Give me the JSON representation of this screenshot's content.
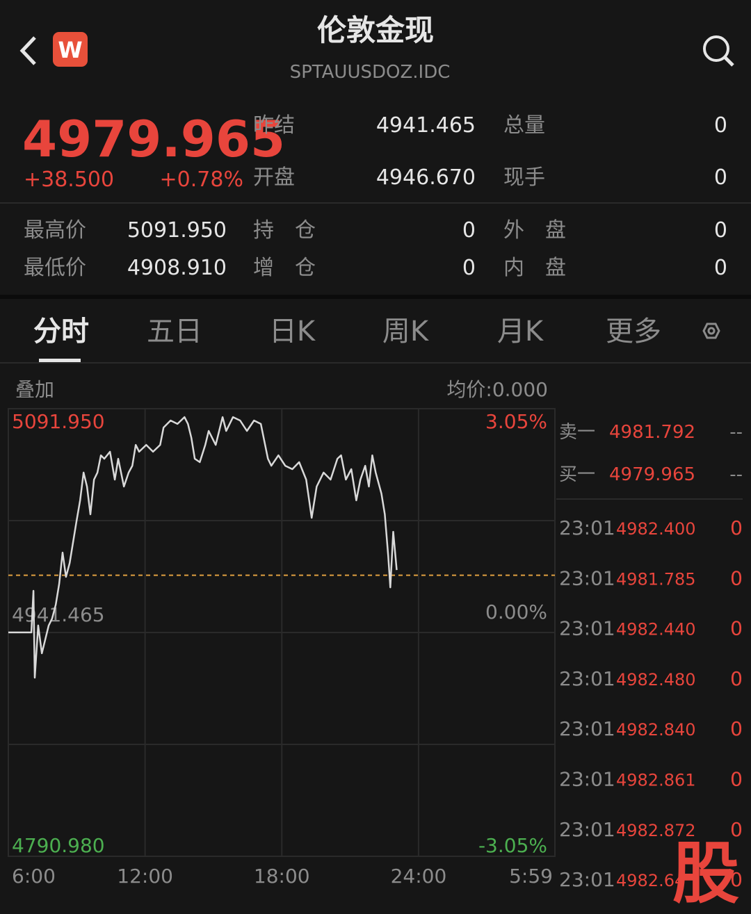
{
  "header": {
    "back": "‹",
    "logo": "W",
    "title": "伦敦金现",
    "subtitle": "SPTAUUSDOZ.IDC"
  },
  "quote": {
    "price": "4979.965",
    "change": "+38.500",
    "change_pct": "+0.78%",
    "fields": [
      [
        "昨结",
        "4941.465",
        "总量",
        "0"
      ],
      [
        "开盘",
        "4946.670",
        "现手",
        "0"
      ]
    ]
  },
  "stats": [
    [
      "最高价",
      "5091.950",
      "持　仓",
      "0",
      "外　盘",
      "0"
    ],
    [
      "最低价",
      "4908.910",
      "增　仓",
      "0",
      "内　盘",
      "0"
    ]
  ],
  "tabs": [
    "分时",
    "五日",
    "日K",
    "周K",
    "月K",
    "更多"
  ],
  "overlay": "叠加",
  "avg_price": "均价:0.000",
  "chart_data": {
    "type": "line",
    "color": "#d9d9d9",
    "price_line": 4979.965,
    "grid": true,
    "x": [
      6.0,
      7.01,
      7.1,
      7.16,
      7.31,
      7.47,
      7.62,
      7.77,
      7.92,
      8.08,
      8.23,
      8.38,
      8.53,
      8.69,
      8.84,
      8.99,
      9.15,
      9.3,
      9.45,
      9.6,
      9.76,
      9.91,
      10.06,
      10.21,
      10.46,
      10.67,
      10.82,
      11.07,
      11.28,
      11.44,
      11.59,
      11.74,
      12.05,
      12.35,
      12.66,
      12.81,
      13.12,
      13.42,
      13.73,
      13.88,
      14.03,
      14.18,
      14.4,
      14.64,
      14.79,
      15.1,
      15.4,
      15.56,
      15.86,
      16.17,
      16.47,
      16.78,
      17.08,
      17.39,
      17.54,
      17.85,
      18.15,
      18.46,
      18.76,
      19.07,
      19.31,
      19.53,
      19.83,
      20.14,
      20.44,
      20.6,
      20.81,
      21.05,
      21.27,
      21.45,
      21.66,
      21.82,
      21.97,
      22.12,
      22.37,
      22.52,
      22.67,
      22.76,
      22.89,
      23.04
    ],
    "series": [
      {
        "values": [
          4941.5,
          4941.5,
          4969.5,
          4911.1,
          4946.2,
          4927.5,
          4936.8,
          4946.2,
          4950.8,
          4960.2,
          4974.2,
          4995.2,
          4978.9,
          4988.2,
          5002.2,
          5016.2,
          5030.3,
          5049.0,
          5039.6,
          5020.9,
          5044.3,
          5049.0,
          5060.6,
          5058.3,
          5063.0,
          5044.3,
          5058.3,
          5039.6,
          5049.0,
          5053.6,
          5067.6,
          5063.0,
          5067.6,
          5063.0,
          5067.6,
          5079.3,
          5084.0,
          5081.7,
          5086.3,
          5081.7,
          5072.3,
          5058.3,
          5056.0,
          5067.6,
          5077.0,
          5067.6,
          5086.3,
          5077.0,
          5086.3,
          5084.0,
          5077.0,
          5084.0,
          5081.7,
          5058.3,
          5053.6,
          5060.6,
          5053.6,
          5051.3,
          5056.0,
          5044.3,
          5018.6,
          5039.6,
          5049.0,
          5044.3,
          5058.3,
          5060.6,
          5044.3,
          5051.3,
          5030.3,
          5044.3,
          5053.6,
          5039.6,
          5060.6,
          5049.0,
          5034.9,
          5020.9,
          4992.9,
          4971.8,
          5009.2,
          4983.5
        ]
      }
    ],
    "xlim": [
      6,
      29.983
    ],
    "ylim": [
      4790.98,
      5091.95
    ],
    "y2lim": [
      -3.05,
      3.05
    ],
    "xticks": [
      {
        "value": 6,
        "label": "6:00"
      },
      {
        "value": 12,
        "label": "12:00"
      },
      {
        "value": 18,
        "label": "18:00"
      },
      {
        "value": 24,
        "label": "24:00"
      },
      {
        "value": 29.983,
        "label": "5:59"
      }
    ],
    "yticks": [
      {
        "value": 5091.95,
        "label": "5091.950"
      },
      {
        "value": 4941.465,
        "label": "4941.465"
      },
      {
        "value": 4790.98,
        "label": "4790.980"
      }
    ],
    "y2ticks": [
      {
        "value": 3.05,
        "label": "3.05%"
      },
      {
        "value": 0,
        "label": "0.00%"
      },
      {
        "value": -3.05,
        "label": "-3.05%"
      }
    ]
  },
  "order_book": [
    [
      "卖一",
      "4981.792",
      "--"
    ],
    [
      "买一",
      "4979.965",
      "--"
    ]
  ],
  "trades": [
    [
      "23:01",
      "4982.400",
      "0"
    ],
    [
      "23:01",
      "4981.785",
      "0"
    ],
    [
      "23:01",
      "4982.440",
      "0"
    ],
    [
      "23:01",
      "4982.480",
      "0"
    ],
    [
      "23:01",
      "4982.840",
      "0"
    ],
    [
      "23:01",
      "4982.861",
      "0"
    ],
    [
      "23:01",
      "4982.872",
      "0"
    ],
    [
      "23:01",
      "4982.64",
      "0"
    ]
  ],
  "watermark": "股"
}
